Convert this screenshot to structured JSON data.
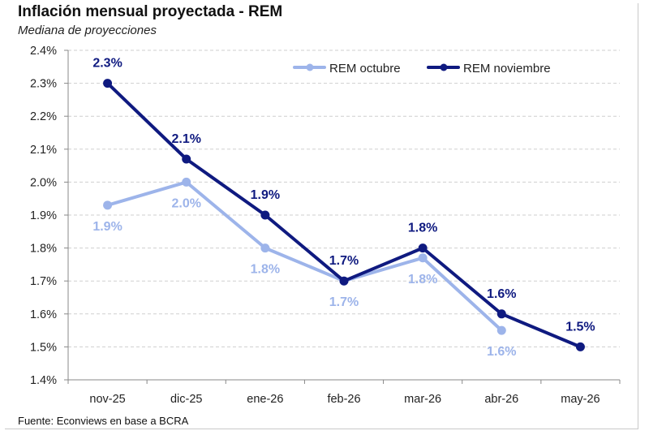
{
  "header": {
    "title": "Inflación mensual proyectada - REM",
    "subtitle": "Mediana de proyecciones"
  },
  "footer": {
    "source": "Fuente: Econviews en base a BCRA"
  },
  "colors": {
    "octubre": "#9db4ea",
    "noviembre": "#0f1a80",
    "grid": "#cfcfcf"
  },
  "chart_data": {
    "type": "line",
    "title": "Inflación mensual proyectada - REM",
    "subtitle": "Mediana de proyecciones",
    "xlabel": "",
    "ylabel": "",
    "categories": [
      "nov-25",
      "dic-25",
      "ene-26",
      "feb-26",
      "mar-26",
      "abr-26",
      "may-26"
    ],
    "ylim": [
      1.4,
      2.4
    ],
    "yticks": [
      1.4,
      1.5,
      1.6,
      1.7,
      1.8,
      1.9,
      2.0,
      2.1,
      2.2,
      2.3,
      2.4
    ],
    "ytick_labels": [
      "1.4%",
      "1.5%",
      "1.6%",
      "1.7%",
      "1.8%",
      "1.9%",
      "2.0%",
      "2.1%",
      "2.2%",
      "2.3%",
      "2.4%"
    ],
    "grid": "horizontal dashed",
    "legend_position": "top-right",
    "series": [
      {
        "name": "REM octubre",
        "key": "octubre",
        "values": [
          1.93,
          2.0,
          1.8,
          1.7,
          1.77,
          1.55,
          null
        ],
        "labels": [
          "1.9%",
          "2.0%",
          "1.8%",
          "1.7%",
          "1.8%",
          "1.6%",
          null
        ]
      },
      {
        "name": "REM noviembre",
        "key": "noviembre",
        "values": [
          2.3,
          2.07,
          1.9,
          1.7,
          1.8,
          1.6,
          1.5
        ],
        "labels": [
          "2.3%",
          "2.1%",
          "1.9%",
          "1.7%",
          "1.8%",
          "1.6%",
          "1.5%"
        ]
      }
    ]
  }
}
